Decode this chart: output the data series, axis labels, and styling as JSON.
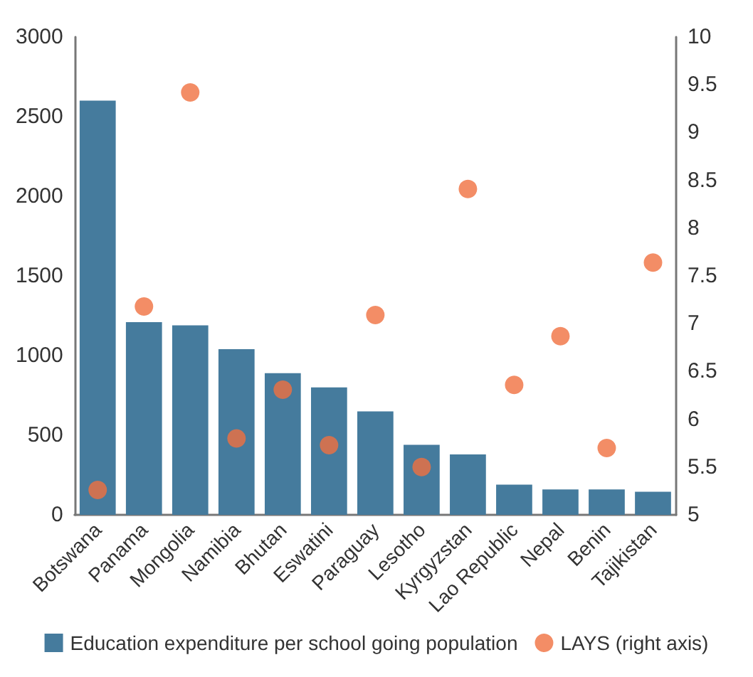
{
  "chart_data": {
    "type": "bar",
    "categories": [
      "Botswana",
      "Panama",
      "Mongolia",
      "Namibia",
      "Bhutan",
      "Eswatini",
      "Paraguay",
      "Lesotho",
      "Kyrgyzstan",
      "Lao Republic",
      "Nepal",
      "Benin",
      "Tajikistan"
    ],
    "series": [
      {
        "name": "Education expenditure per school going population",
        "color": "#457b9d",
        "values": [
          2600,
          1210,
          1190,
          1040,
          890,
          800,
          650,
          440,
          380,
          190,
          160,
          160,
          145
        ]
      },
      {
        "name": "LAYS (right axis)",
        "type": "scatter",
        "axis": "y2",
        "color": "#f07040",
        "values": [
          5.26,
          7.18,
          9.42,
          5.8,
          6.31,
          5.73,
          7.09,
          5.5,
          8.41,
          6.36,
          6.87,
          5.7,
          7.64
        ]
      }
    ],
    "ylim": [
      0,
      3000
    ],
    "yticks": [
      0,
      500,
      1000,
      1500,
      2000,
      2500,
      3000
    ],
    "y2lim": [
      5,
      10
    ],
    "y2ticks": [
      5,
      5.5,
      6,
      6.5,
      7,
      7.5,
      8,
      8.5,
      9,
      9.5,
      10
    ],
    "grid": false,
    "legend": "bottom",
    "marker": "circle"
  }
}
